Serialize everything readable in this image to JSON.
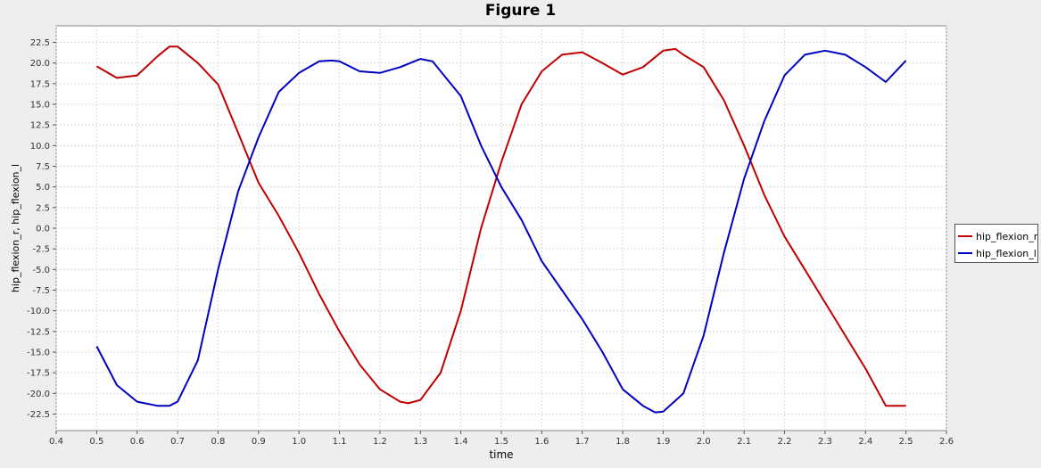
{
  "chart_data": {
    "type": "line",
    "title": "Figure 1",
    "xlabel": "time",
    "ylabel": "hip_flexion_r, hip_flexion_l",
    "xlim": [
      0.4,
      2.6
    ],
    "ylim": [
      -24.5,
      24.5
    ],
    "xticks": [
      "0.4",
      "0.5",
      "0.6",
      "0.7",
      "0.8",
      "0.9",
      "1.0",
      "1.1",
      "1.2",
      "1.3",
      "1.4",
      "1.5",
      "1.6",
      "1.7",
      "1.8",
      "1.9",
      "2.0",
      "2.1",
      "2.2",
      "2.3",
      "2.4",
      "2.5",
      "2.6"
    ],
    "yticks": [
      "22.5",
      "20.0",
      "17.5",
      "15.0",
      "12.5",
      "10.0",
      "7.5",
      "5.0",
      "2.5",
      "0.0",
      "-2.5",
      "-5.0",
      "-7.5",
      "-10.0",
      "-12.5",
      "-15.0",
      "-17.5",
      "-20.0",
      "-22.5"
    ],
    "grid": true,
    "legend_position": "right",
    "series": [
      {
        "name": "hip_flexion_r",
        "color": "#c00000",
        "x": [
          0.5,
          0.55,
          0.6,
          0.65,
          0.68,
          0.7,
          0.75,
          0.8,
          0.85,
          0.9,
          0.95,
          1.0,
          1.05,
          1.1,
          1.15,
          1.2,
          1.25,
          1.27,
          1.3,
          1.35,
          1.4,
          1.45,
          1.5,
          1.55,
          1.6,
          1.65,
          1.7,
          1.75,
          1.8,
          1.85,
          1.9,
          1.93,
          1.95,
          2.0,
          2.05,
          2.1,
          2.15,
          2.2,
          2.25,
          2.3,
          2.35,
          2.4,
          2.45,
          2.5
        ],
        "y": [
          19.6,
          18.2,
          18.5,
          20.8,
          22,
          22,
          20,
          17.4,
          11.5,
          5.5,
          1.5,
          -3,
          -8,
          -12.5,
          -16.5,
          -19.5,
          -21,
          -21.2,
          -20.8,
          -17.5,
          -10,
          0,
          8,
          15,
          19,
          21,
          21.3,
          20,
          18.6,
          19.5,
          21.5,
          21.7,
          21,
          19.5,
          15.5,
          10,
          4,
          -1,
          -5,
          -9,
          -13,
          -17,
          -21.5,
          -21.5
        ]
      },
      {
        "name": "hip_flexion_l",
        "color": "#0000c0",
        "x": [
          0.5,
          0.55,
          0.6,
          0.65,
          0.68,
          0.7,
          0.75,
          0.8,
          0.85,
          0.9,
          0.95,
          1.0,
          1.05,
          1.08,
          1.1,
          1.15,
          1.2,
          1.25,
          1.3,
          1.33,
          1.35,
          1.4,
          1.45,
          1.5,
          1.55,
          1.6,
          1.65,
          1.7,
          1.75,
          1.8,
          1.85,
          1.88,
          1.9,
          1.95,
          2.0,
          2.05,
          2.1,
          2.15,
          2.2,
          2.25,
          2.3,
          2.35,
          2.4,
          2.45,
          2.5
        ],
        "y": [
          -14.3,
          -19,
          -21,
          -21.5,
          -21.5,
          -21,
          -16,
          -5,
          4.5,
          11,
          16.5,
          18.8,
          20.2,
          20.3,
          20.2,
          19,
          18.8,
          19.5,
          20.5,
          20.2,
          19,
          16,
          10,
          5,
          1,
          -4,
          -7.5,
          -11,
          -15,
          -19.5,
          -21.5,
          -22.3,
          -22.2,
          -20,
          -13,
          -3,
          6,
          13,
          18.5,
          21,
          21.5,
          21,
          19.5,
          17.7,
          20.3
        ]
      }
    ]
  }
}
